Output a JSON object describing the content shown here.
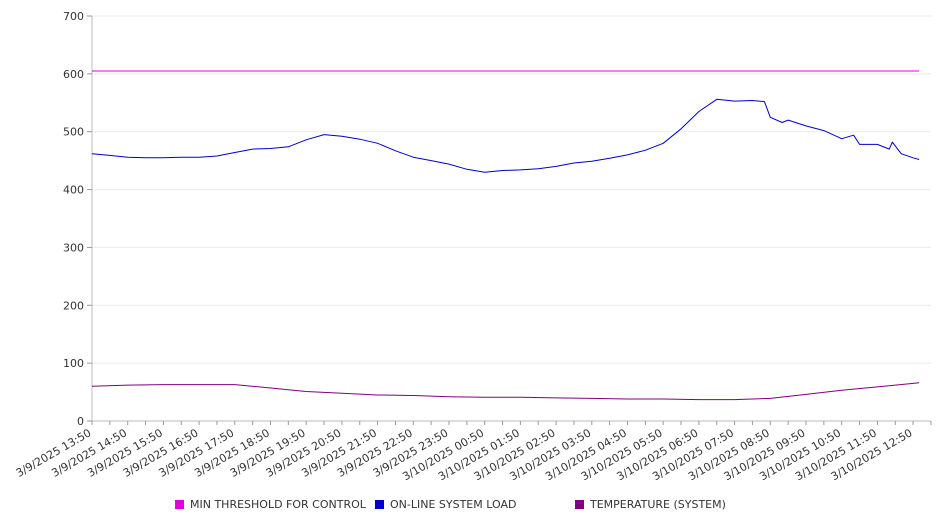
{
  "chart_data": {
    "type": "line",
    "x_tick_labels": [
      "3/9/2025 13:50",
      "3/9/2025 14:50",
      "3/9/2025 15:50",
      "3/9/2025 16:50",
      "3/9/2025 17:50",
      "3/9/2025 18:50",
      "3/9/2025 19:50",
      "3/9/2025 20:50",
      "3/9/2025 21:50",
      "3/9/2025 22:50",
      "3/9/2025 23:50",
      "3/10/2025 00:50",
      "3/10/2025 01:50",
      "3/10/2025 02:50",
      "3/10/2025 03:50",
      "3/10/2025 04:50",
      "3/10/2025 05:50",
      "3/10/2025 06:50",
      "3/10/2025 07:50",
      "3/10/2025 08:50",
      "3/10/2025 09:50",
      "3/10/2025 10:50",
      "3/10/2025 11:50",
      "3/10/2025 12:50"
    ],
    "y_ticks": [
      0,
      100,
      200,
      300,
      400,
      500,
      600,
      700
    ],
    "ylim": [
      0,
      700
    ],
    "grid": true,
    "legend_position": "bottom",
    "series": [
      {
        "name": "MIN THRESHOLD FOR CONTROL",
        "color": "#e000e0",
        "points": [
          [
            "3/9/2025 13:50",
            605
          ],
          [
            "3/10/2025 13:00",
            605
          ]
        ]
      },
      {
        "name": "ON-LINE SYSTEM LOAD",
        "color": "#0000cc",
        "points": [
          [
            "3/9/2025 13:50",
            462
          ],
          [
            "3/9/2025 14:20",
            459
          ],
          [
            "3/9/2025 14:50",
            456
          ],
          [
            "3/9/2025 15:20",
            455
          ],
          [
            "3/9/2025 15:50",
            455
          ],
          [
            "3/9/2025 16:20",
            456
          ],
          [
            "3/9/2025 16:50",
            456
          ],
          [
            "3/9/2025 17:20",
            458
          ],
          [
            "3/9/2025 17:50",
            464
          ],
          [
            "3/9/2025 18:20",
            470
          ],
          [
            "3/9/2025 18:50",
            471
          ],
          [
            "3/9/2025 19:20",
            474
          ],
          [
            "3/9/2025 19:50",
            486
          ],
          [
            "3/9/2025 20:20",
            495
          ],
          [
            "3/9/2025 20:50",
            492
          ],
          [
            "3/9/2025 21:20",
            487
          ],
          [
            "3/9/2025 21:50",
            480
          ],
          [
            "3/9/2025 22:20",
            467
          ],
          [
            "3/9/2025 22:50",
            456
          ],
          [
            "3/9/2025 23:20",
            450
          ],
          [
            "3/9/2025 23:50",
            444
          ],
          [
            "3/10/2025 00:20",
            435
          ],
          [
            "3/10/2025 00:50",
            430
          ],
          [
            "3/10/2025 01:20",
            433
          ],
          [
            "3/10/2025 01:50",
            434
          ],
          [
            "3/10/2025 02:20",
            436
          ],
          [
            "3/10/2025 02:50",
            440
          ],
          [
            "3/10/2025 03:20",
            446
          ],
          [
            "3/10/2025 03:50",
            449
          ],
          [
            "3/10/2025 04:20",
            454
          ],
          [
            "3/10/2025 04:50",
            460
          ],
          [
            "3/10/2025 05:20",
            468
          ],
          [
            "3/10/2025 05:50",
            480
          ],
          [
            "3/10/2025 06:20",
            505
          ],
          [
            "3/10/2025 06:50",
            535
          ],
          [
            "3/10/2025 07:20",
            556
          ],
          [
            "3/10/2025 07:50",
            553
          ],
          [
            "3/10/2025 08:20",
            554
          ],
          [
            "3/10/2025 08:40",
            552
          ],
          [
            "3/10/2025 08:50",
            525
          ],
          [
            "3/10/2025 09:10",
            516
          ],
          [
            "3/10/2025 09:20",
            520
          ],
          [
            "3/10/2025 09:50",
            510
          ],
          [
            "3/10/2025 10:20",
            502
          ],
          [
            "3/10/2025 10:50",
            488
          ],
          [
            "3/10/2025 11:10",
            494
          ],
          [
            "3/10/2025 11:20",
            478
          ],
          [
            "3/10/2025 11:50",
            478
          ],
          [
            "3/10/2025 12:10",
            470
          ],
          [
            "3/10/2025 12:15",
            482
          ],
          [
            "3/10/2025 12:30",
            462
          ],
          [
            "3/10/2025 12:50",
            455
          ],
          [
            "3/10/2025 13:00",
            452
          ]
        ]
      },
      {
        "name": "TEMPERATURE (SYSTEM)",
        "color": "#800080",
        "points": [
          [
            "3/9/2025 13:50",
            60
          ],
          [
            "3/9/2025 14:50",
            62
          ],
          [
            "3/9/2025 15:50",
            63
          ],
          [
            "3/9/2025 16:50",
            63
          ],
          [
            "3/9/2025 17:50",
            63
          ],
          [
            "3/9/2025 18:50",
            57
          ],
          [
            "3/9/2025 19:50",
            51
          ],
          [
            "3/9/2025 20:50",
            48
          ],
          [
            "3/9/2025 21:50",
            45
          ],
          [
            "3/9/2025 22:50",
            44
          ],
          [
            "3/9/2025 23:50",
            42
          ],
          [
            "3/10/2025 00:50",
            41
          ],
          [
            "3/10/2025 01:50",
            41
          ],
          [
            "3/10/2025 02:50",
            40
          ],
          [
            "3/10/2025 03:50",
            39
          ],
          [
            "3/10/2025 04:50",
            38
          ],
          [
            "3/10/2025 05:50",
            38
          ],
          [
            "3/10/2025 06:50",
            37
          ],
          [
            "3/10/2025 07:50",
            37
          ],
          [
            "3/10/2025 08:50",
            39
          ],
          [
            "3/10/2025 09:50",
            46
          ],
          [
            "3/10/2025 10:50",
            53
          ],
          [
            "3/10/2025 11:50",
            59
          ],
          [
            "3/10/2025 12:50",
            65
          ],
          [
            "3/10/2025 13:00",
            66
          ]
        ]
      }
    ]
  }
}
